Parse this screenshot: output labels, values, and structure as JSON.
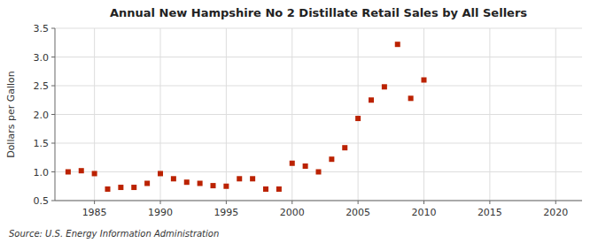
{
  "chart_data": {
    "type": "scatter",
    "title": "Annual New Hampshire No 2 Distillate Retail Sales by All Sellers",
    "ylabel": "Dollars per Gallon",
    "source": "Source: U.S. Energy Information Administration",
    "color": "#bb2200",
    "marker": "square",
    "grid": true,
    "xlim": [
      1982,
      2022
    ],
    "ylim": [
      0.5,
      3.5
    ],
    "xticks": [
      1985,
      1990,
      1995,
      2000,
      2005,
      2010,
      2015,
      2020
    ],
    "yticks": [
      0.5,
      {
        "value": 1,
        "label": "1.0"
      },
      1.5,
      {
        "value": 2,
        "label": "2.0"
      },
      2.5,
      {
        "value": 3,
        "label": "3.0"
      },
      3.5
    ],
    "x": [
      1983,
      1984,
      1985,
      1986,
      1987,
      1988,
      1989,
      1990,
      1991,
      1992,
      1993,
      1994,
      1995,
      1996,
      1997,
      1998,
      1999,
      2000,
      2001,
      2002,
      2003,
      2004,
      2005,
      2006,
      2007,
      2008,
      2009,
      2010
    ],
    "values": [
      1.0,
      1.02,
      0.97,
      0.7,
      0.73,
      0.73,
      0.8,
      0.97,
      0.88,
      0.82,
      0.8,
      0.76,
      0.75,
      0.88,
      0.88,
      0.7,
      0.7,
      1.15,
      1.1,
      1.0,
      1.22,
      1.42,
      1.93,
      2.25,
      2.48,
      3.22,
      2.28,
      2.6
    ]
  }
}
